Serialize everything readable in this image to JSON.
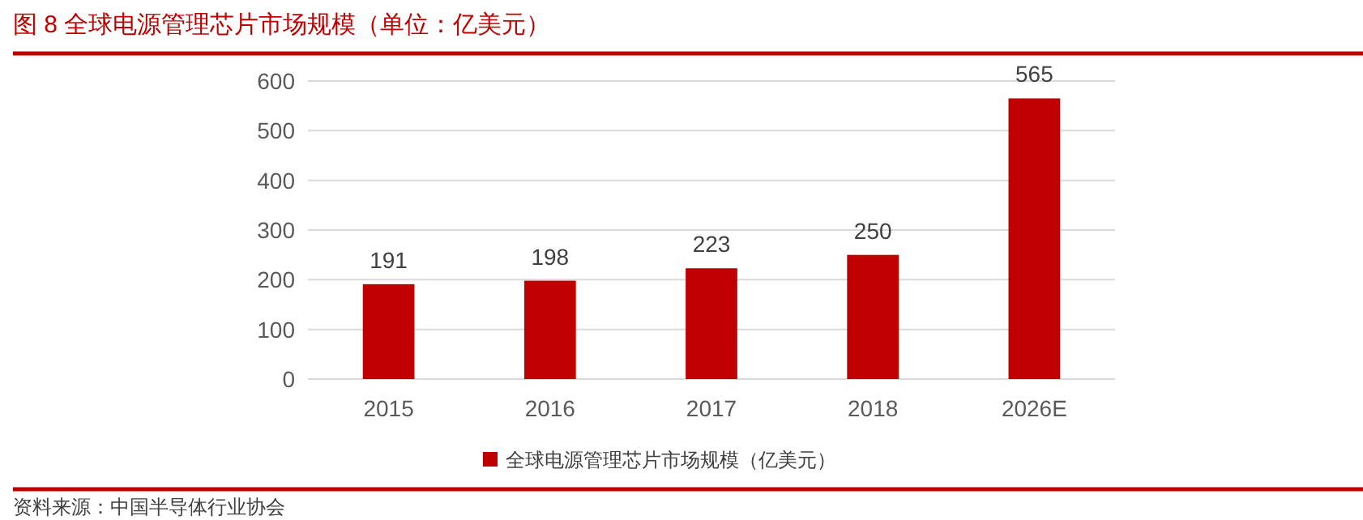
{
  "chart_data": {
    "type": "bar",
    "title": "图 8  全球电源管理芯片市场规模（单位：亿美元）",
    "categories": [
      "2015",
      "2016",
      "2017",
      "2018",
      "2026E"
    ],
    "series": [
      {
        "name": "全球电源管理芯片市场规模（亿美元）",
        "color": "#c00000",
        "values": [
          191,
          198,
          223,
          250,
          565
        ]
      }
    ],
    "ylim": [
      0,
      600
    ],
    "yticks": [
      0,
      100,
      200,
      300,
      400,
      500,
      600
    ],
    "grid": "y",
    "legend": "bottom",
    "data_labels": true,
    "annotations": [
      "资料来源：中国半导体行业协会"
    ]
  }
}
